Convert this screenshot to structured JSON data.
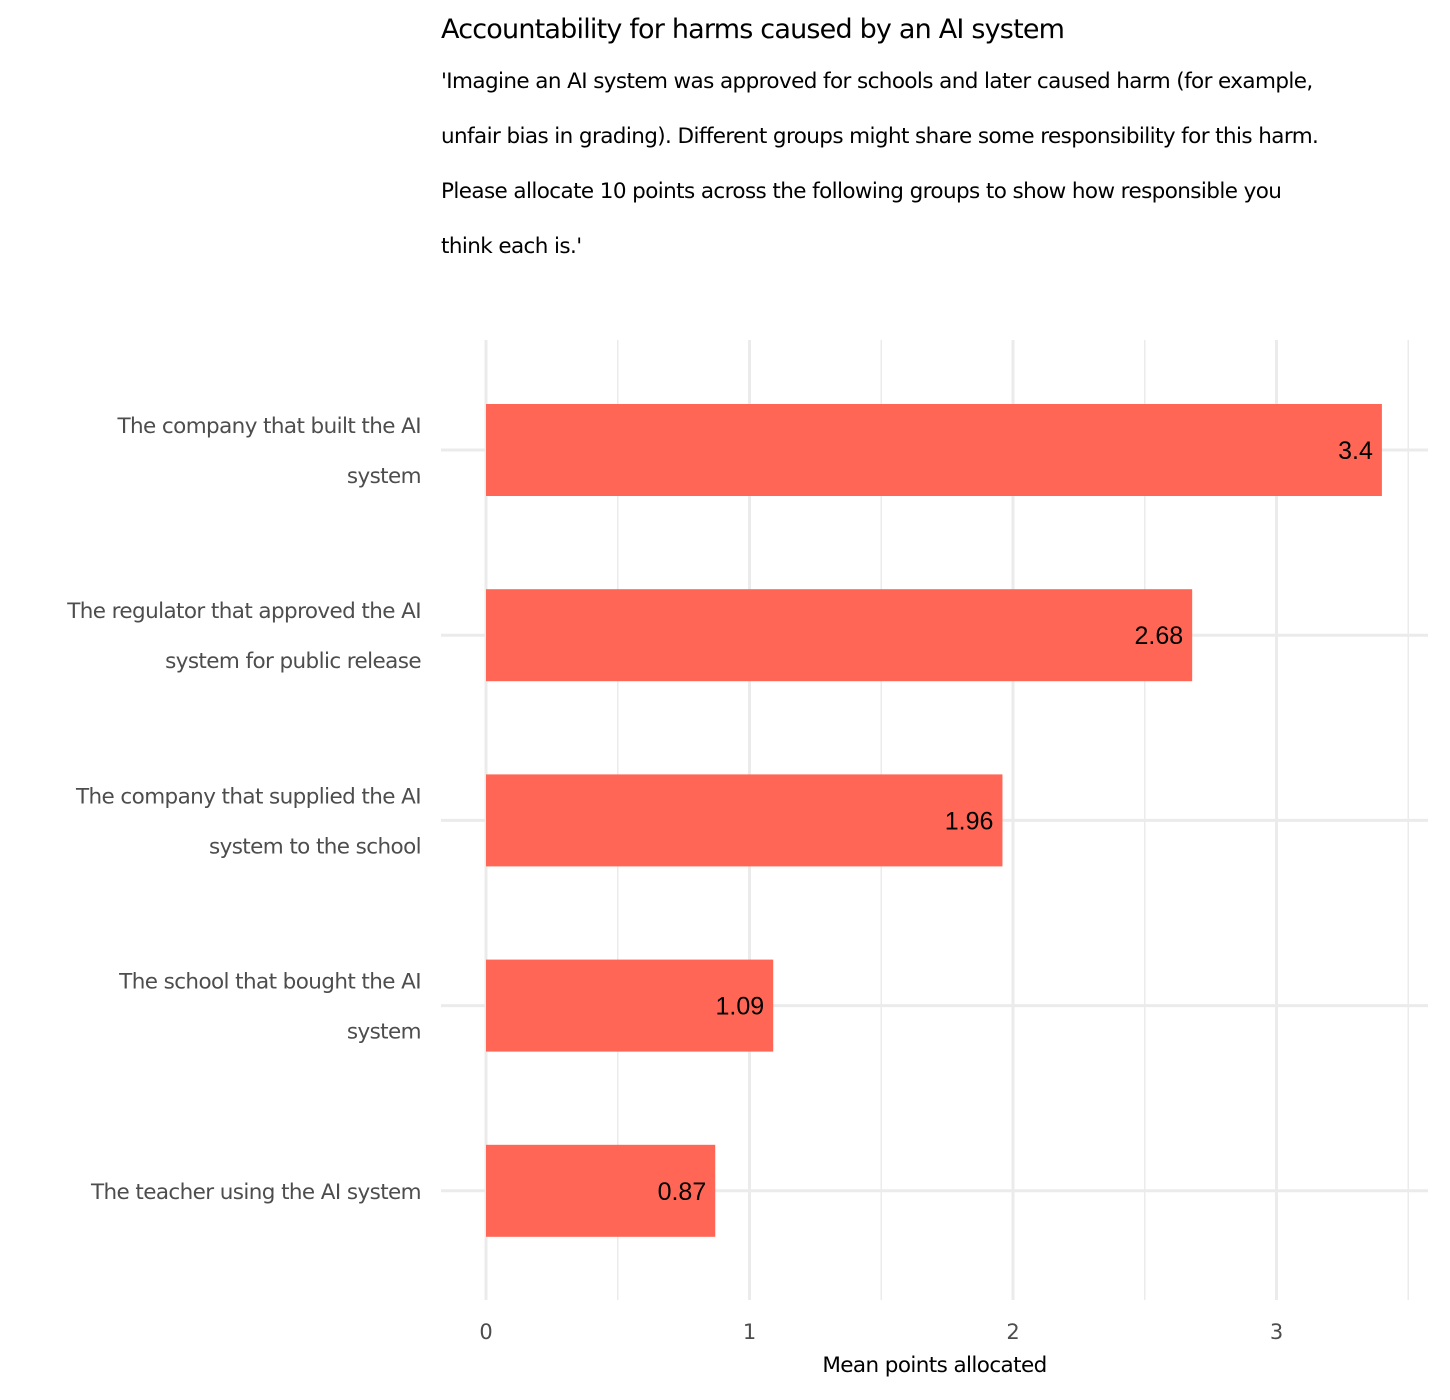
{
  "chart_data": {
    "type": "bar",
    "orientation": "horizontal",
    "title": "Accountability for harms caused by an AI system",
    "subtitle_lines": [
      "'Imagine an AI system was approved for schools and later caused harm (for example,",
      "unfair bias in grading). Different groups might share some responsibility for this harm.",
      "Please allocate 10 points across the following groups to show how responsible you",
      "think each is.'"
    ],
    "xlabel": "Mean points allocated",
    "ylabel": "",
    "xlim": [
      0,
      3.5
    ],
    "x_ticks": [
      0,
      1,
      2,
      3
    ],
    "grid": true,
    "bar_color": "#ff6655",
    "categories": [
      [
        "The company that built the AI",
        "system"
      ],
      [
        "The regulator that approved the AI",
        "system for public release"
      ],
      [
        "The company that supplied the AI",
        "system to the school"
      ],
      [
        "The school that bought the AI",
        "system"
      ],
      [
        "The teacher using the AI system"
      ]
    ],
    "values": [
      3.4,
      2.68,
      1.96,
      1.09,
      0.87
    ],
    "data_labels": [
      "3.4",
      "2.68",
      "1.96",
      "1.09",
      "0.87"
    ]
  }
}
